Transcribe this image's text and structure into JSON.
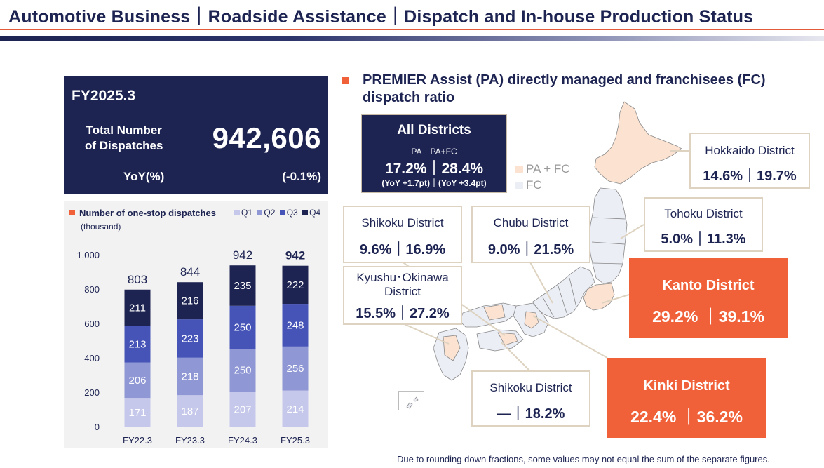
{
  "header": {
    "title": "Automotive Business｜Roadside Assistance｜Dispatch and In-house Production Status"
  },
  "summary": {
    "period": "FY2025.3",
    "total_label_line1": "Total Number",
    "total_label_line2": "of Dispatches",
    "total_value": "942,606",
    "yoy_label": "YoY(%)",
    "yoy_value": "(-0.1%)"
  },
  "colors": {
    "navy": "#1d2452",
    "accent": "#f0613a",
    "q1": "#c5c8ea",
    "q2": "#8f97d4",
    "q3": "#4654b8",
    "q4": "#1d2452",
    "pa_fc": "#fbe2d1",
    "fc": "#eceef6"
  },
  "chart_data": {
    "type": "bar",
    "stacked": true,
    "title": "Number of one-stop dispatches",
    "unit": "(thousand)",
    "categories": [
      "FY22.3",
      "FY23.3",
      "FY24.3",
      "FY25.3"
    ],
    "series": [
      {
        "name": "Q1",
        "values": [
          171,
          187,
          207,
          214
        ]
      },
      {
        "name": "Q2",
        "values": [
          206,
          218,
          250,
          256
        ]
      },
      {
        "name": "Q3",
        "values": [
          213,
          223,
          250,
          248
        ]
      },
      {
        "name": "Q4",
        "values": [
          211,
          216,
          235,
          222
        ]
      }
    ],
    "totals": [
      "803",
      "844",
      "942",
      "942"
    ],
    "ylim": [
      0,
      1000
    ],
    "yticks": [
      "0",
      "200",
      "400",
      "600",
      "800",
      "1,000"
    ],
    "legend_position": "top-right"
  },
  "map_section": {
    "title": "PREMIER Assist (PA) directly managed and franchisees (FC) dispatch ratio",
    "all": {
      "title": "All Districts",
      "sub": "PA｜PA+FC",
      "values": "17.2%｜28.4%",
      "yoy": "(YoY +1.7pt)｜(YoY +3.4pt)"
    },
    "legend": {
      "pa_fc": "PA + FC",
      "fc": "FC"
    },
    "districts": {
      "hokkaido": {
        "name": "Hokkaido District",
        "values": "14.6%｜19.7%"
      },
      "tohoku": {
        "name": "Tohoku District",
        "values": "5.0%｜11.3%"
      },
      "kanto": {
        "name": "Kanto District",
        "values": "29.2% ｜39.1%"
      },
      "chubu": {
        "name": "Chubu District",
        "values": "9.0%｜21.5%"
      },
      "shikoku_top": {
        "name": "Shikoku District",
        "values": "9.6%｜16.9%"
      },
      "kyushu": {
        "name_line1": "Kyushu･Okinawa",
        "name_line2": "District",
        "values": "15.5%｜27.2%"
      },
      "shikoku_bottom": {
        "name": "Shikoku District",
        "values": "―｜18.2%"
      },
      "kinki": {
        "name": "Kinki District",
        "values": "22.4% ｜36.2%"
      }
    }
  },
  "footnote": "Due to rounding down fractions, some values may not equal the sum of the separate figures."
}
